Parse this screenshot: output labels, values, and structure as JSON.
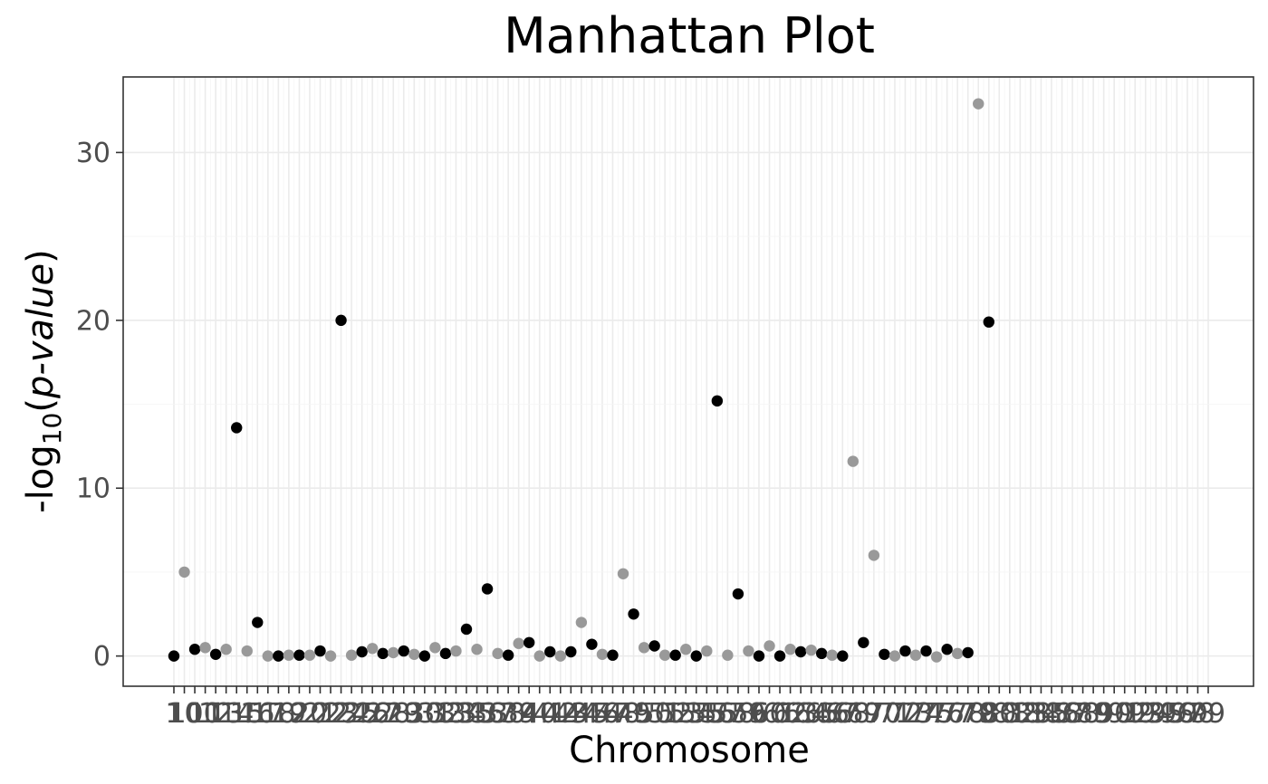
{
  "chart_data": {
    "type": "scatter",
    "title": "Manhattan Plot",
    "xlabel": "Chromosome",
    "ylabel": "-log10(p-value)",
    "ylabel_parts": {
      "prefix": "-log",
      "subscript": "10",
      "open": "(",
      "italic": "p-value",
      "close": ")"
    },
    "ylim": [
      -1.8,
      34.5
    ],
    "yticks": [
      0,
      10,
      20,
      30
    ],
    "grid": true,
    "point_colors": [
      "#000000",
      "#999999"
    ],
    "x_tick_labels": [
      "1",
      "10",
      "100",
      "11",
      "12",
      "13",
      "14",
      "15",
      "16",
      "17",
      "18",
      "19",
      "2",
      "20",
      "21",
      "22",
      "23",
      "24",
      "25",
      "26",
      "27",
      "28",
      "29",
      "3",
      "30",
      "31",
      "32",
      "33",
      "34",
      "35",
      "36",
      "37",
      "38",
      "39",
      "4",
      "40",
      "41",
      "42",
      "43",
      "44",
      "45",
      "46",
      "47",
      "48",
      "49",
      "5",
      "50",
      "51",
      "52",
      "53",
      "54",
      "55",
      "56",
      "57",
      "58",
      "59",
      "6",
      "60",
      "61",
      "62",
      "63",
      "64",
      "65",
      "66",
      "67",
      "68",
      "69",
      "7",
      "70",
      "71",
      "72",
      "73",
      "74",
      "75",
      "76",
      "77",
      "78",
      "79",
      "8",
      "80",
      "81",
      "82",
      "83",
      "84",
      "85",
      "86",
      "87",
      "88",
      "89",
      "9",
      "90",
      "91",
      "92",
      "93",
      "94",
      "95",
      "96",
      "97",
      "98",
      "99"
    ],
    "points": [
      {
        "chromosome": "1",
        "y": 0.0
      },
      {
        "chromosome": "10",
        "y": 5.0
      },
      {
        "chromosome": "100",
        "y": 0.4
      },
      {
        "chromosome": "11",
        "y": 0.5
      },
      {
        "chromosome": "12",
        "y": 0.1
      },
      {
        "chromosome": "13",
        "y": 0.4
      },
      {
        "chromosome": "14",
        "y": 13.6
      },
      {
        "chromosome": "15",
        "y": 0.3
      },
      {
        "chromosome": "16",
        "y": 2.0
      },
      {
        "chromosome": "17",
        "y": 0.0
      },
      {
        "chromosome": "18",
        "y": 0.0
      },
      {
        "chromosome": "19",
        "y": 0.05
      },
      {
        "chromosome": "2",
        "y": 0.05
      },
      {
        "chromosome": "20",
        "y": 0.05
      },
      {
        "chromosome": "21",
        "y": 0.3
      },
      {
        "chromosome": "22",
        "y": 0.0
      },
      {
        "chromosome": "23",
        "y": 20.0
      },
      {
        "chromosome": "24",
        "y": 0.05
      },
      {
        "chromosome": "25",
        "y": 0.25
      },
      {
        "chromosome": "26",
        "y": 0.45
      },
      {
        "chromosome": "27",
        "y": 0.15
      },
      {
        "chromosome": "28",
        "y": 0.2
      },
      {
        "chromosome": "29",
        "y": 0.3
      },
      {
        "chromosome": "3",
        "y": 0.1
      },
      {
        "chromosome": "30",
        "y": 0.0
      },
      {
        "chromosome": "31",
        "y": 0.5
      },
      {
        "chromosome": "32",
        "y": 0.15
      },
      {
        "chromosome": "33",
        "y": 0.3
      },
      {
        "chromosome": "34",
        "y": 1.6
      },
      {
        "chromosome": "35",
        "y": 0.4
      },
      {
        "chromosome": "36",
        "y": 4.0
      },
      {
        "chromosome": "37",
        "y": 0.15
      },
      {
        "chromosome": "38",
        "y": 0.05
      },
      {
        "chromosome": "39",
        "y": 0.75
      },
      {
        "chromosome": "4",
        "y": 0.8
      },
      {
        "chromosome": "40",
        "y": 0.0
      },
      {
        "chromosome": "41",
        "y": 0.25
      },
      {
        "chromosome": "42",
        "y": 0.0
      },
      {
        "chromosome": "43",
        "y": 0.25
      },
      {
        "chromosome": "44",
        "y": 2.0
      },
      {
        "chromosome": "45",
        "y": 0.7
      },
      {
        "chromosome": "46",
        "y": 0.1
      },
      {
        "chromosome": "47",
        "y": 0.05
      },
      {
        "chromosome": "48",
        "y": 4.9
      },
      {
        "chromosome": "49",
        "y": 2.5
      },
      {
        "chromosome": "5",
        "y": 0.5
      },
      {
        "chromosome": "50",
        "y": 0.6
      },
      {
        "chromosome": "51",
        "y": 0.05
      },
      {
        "chromosome": "52",
        "y": 0.05
      },
      {
        "chromosome": "53",
        "y": 0.4
      },
      {
        "chromosome": "54",
        "y": 0.0
      },
      {
        "chromosome": "55",
        "y": 0.3
      },
      {
        "chromosome": "56",
        "y": 15.2
      },
      {
        "chromosome": "57",
        "y": 0.05
      },
      {
        "chromosome": "58",
        "y": 3.7
      },
      {
        "chromosome": "59",
        "y": 0.3
      },
      {
        "chromosome": "6",
        "y": 0.0
      },
      {
        "chromosome": "60",
        "y": 0.6
      },
      {
        "chromosome": "61",
        "y": 0.0
      },
      {
        "chromosome": "62",
        "y": 0.4
      },
      {
        "chromosome": "63",
        "y": 0.25
      },
      {
        "chromosome": "64",
        "y": 0.35
      },
      {
        "chromosome": "65",
        "y": 0.15
      },
      {
        "chromosome": "66",
        "y": 0.05
      },
      {
        "chromosome": "67",
        "y": 0.0
      },
      {
        "chromosome": "68",
        "y": 11.6
      },
      {
        "chromosome": "69",
        "y": 0.8
      },
      {
        "chromosome": "7",
        "y": 6.0
      },
      {
        "chromosome": "70",
        "y": 0.1
      },
      {
        "chromosome": "71",
        "y": 0.0
      },
      {
        "chromosome": "72",
        "y": 0.3
      },
      {
        "chromosome": "73",
        "y": 0.05
      },
      {
        "chromosome": "74",
        "y": 0.3
      },
      {
        "chromosome": "75",
        "y": -0.05
      },
      {
        "chromosome": "76",
        "y": 0.4
      },
      {
        "chromosome": "77",
        "y": 0.15
      },
      {
        "chromosome": "78",
        "y": 0.2
      },
      {
        "chromosome": "79",
        "y": 32.9
      },
      {
        "chromosome": "8",
        "y": 19.9
      }
    ]
  }
}
